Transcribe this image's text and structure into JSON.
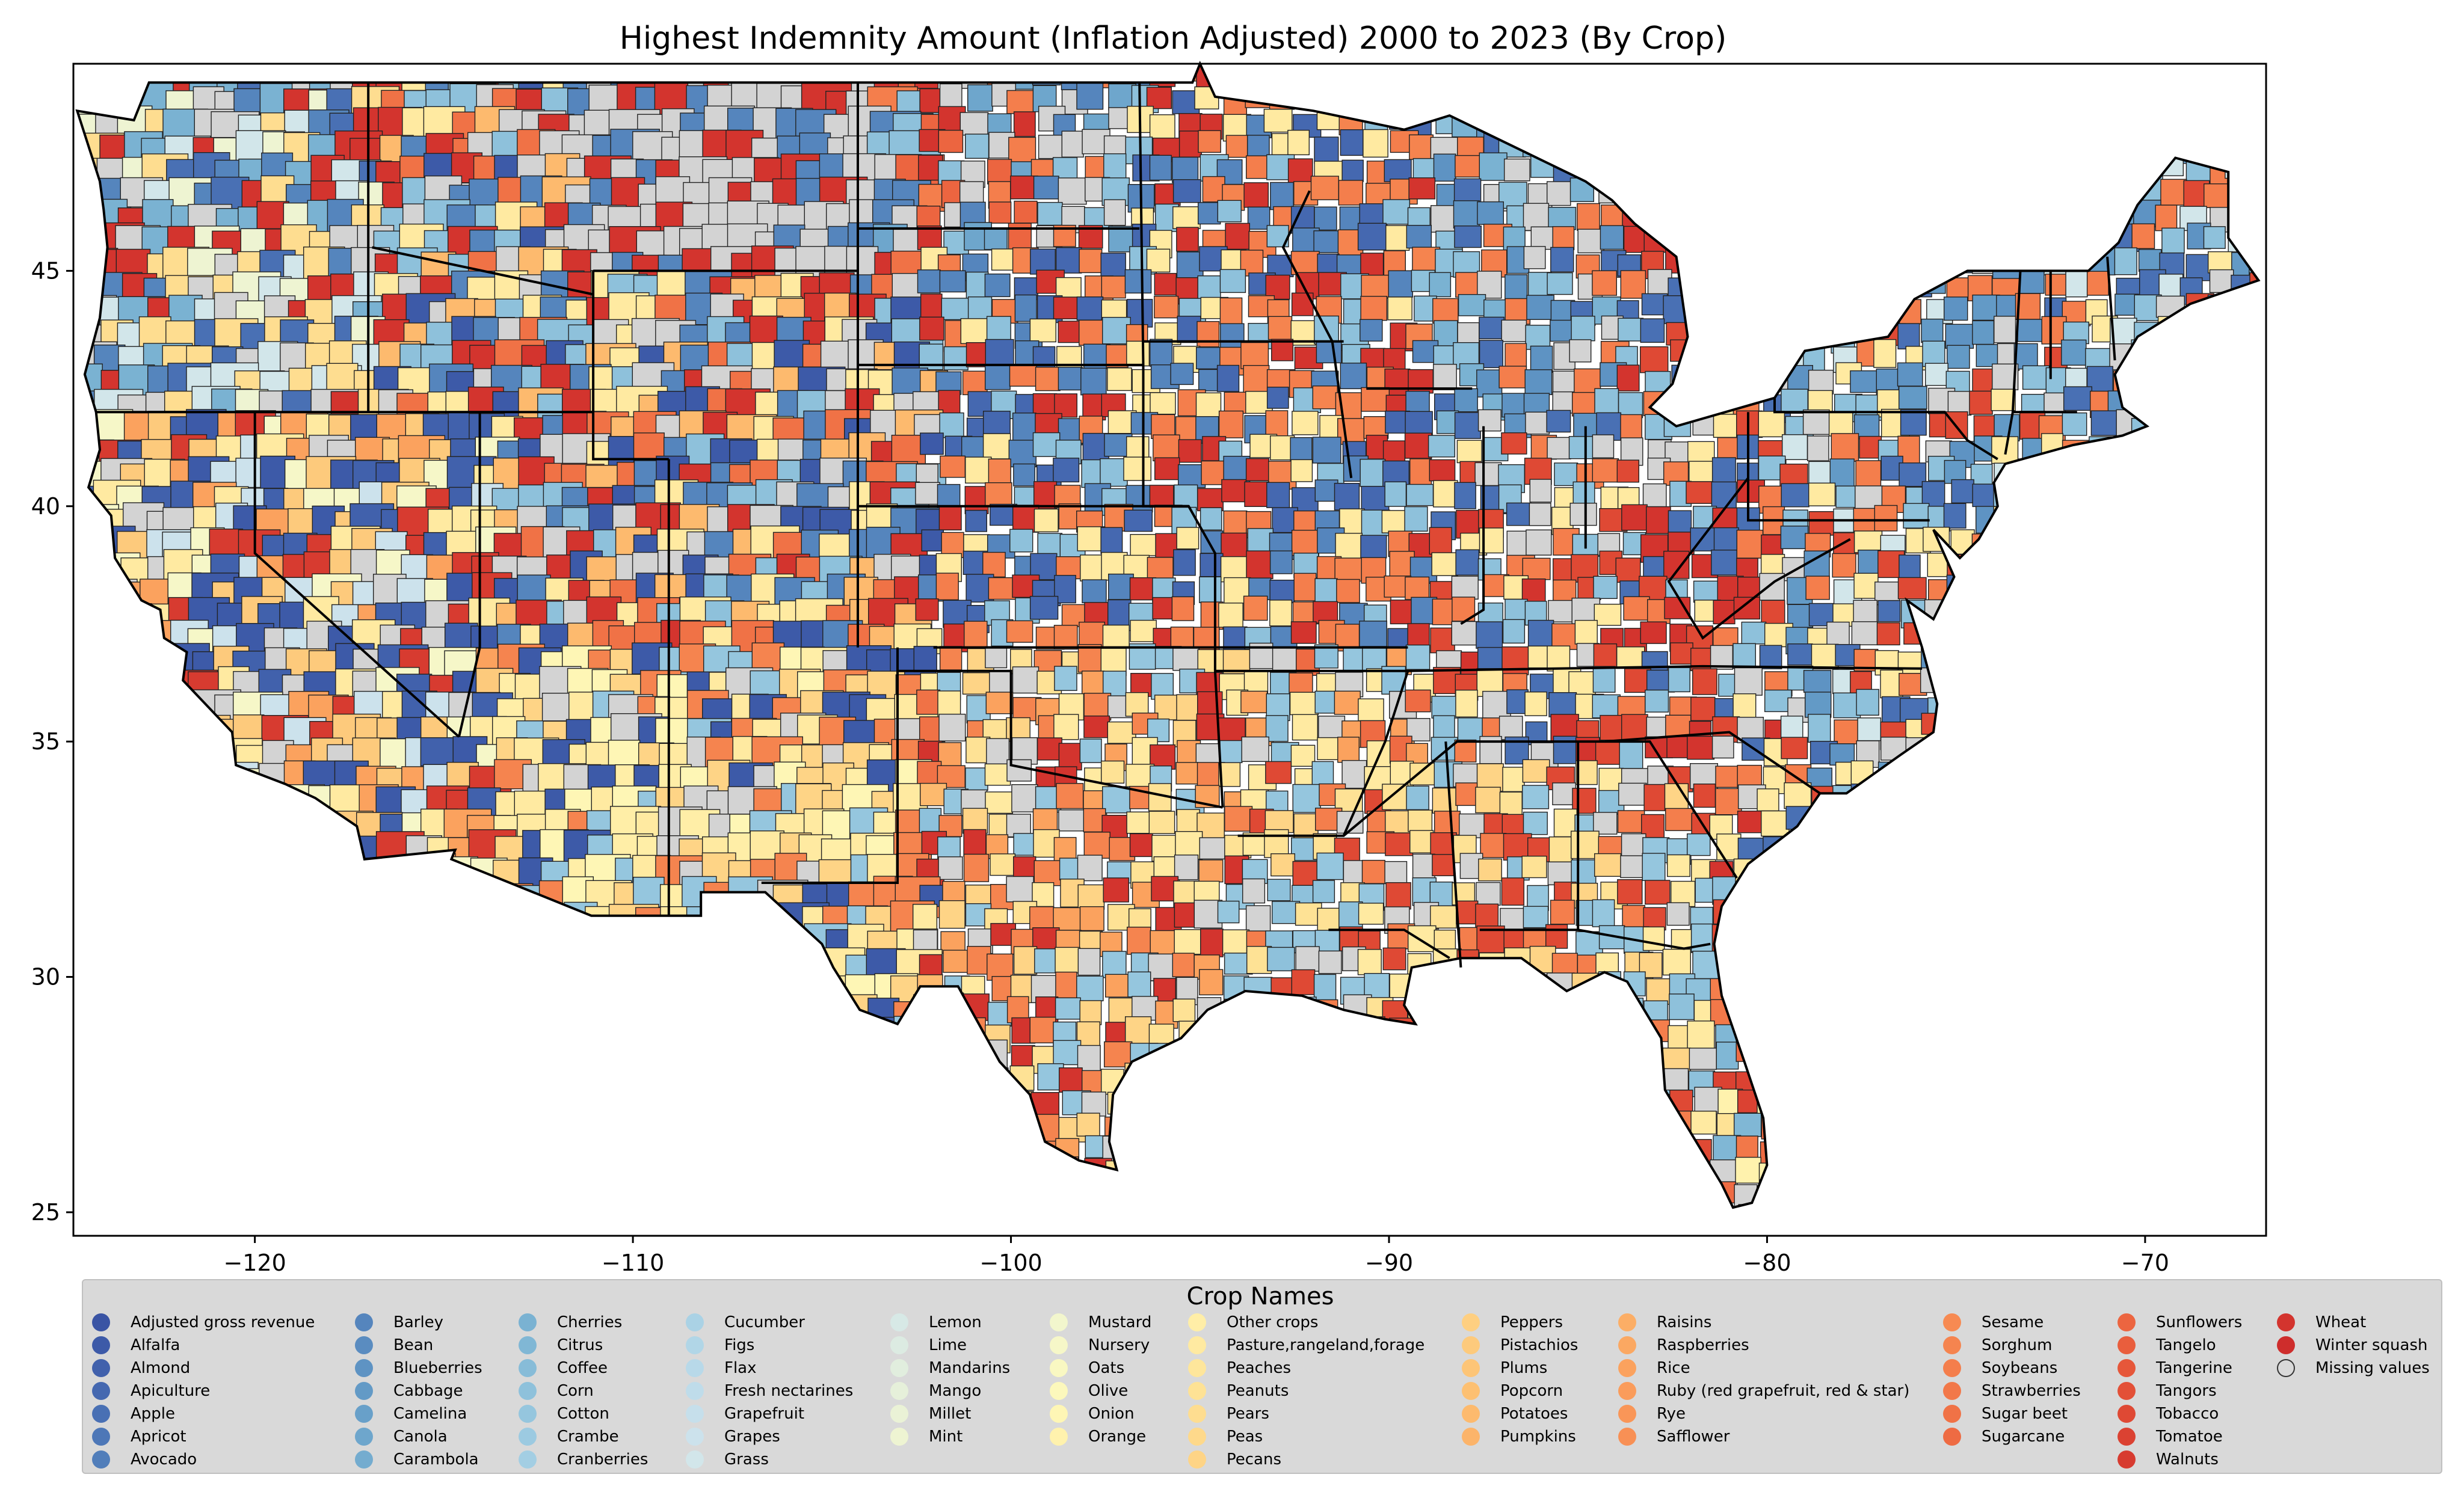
{
  "chart_data": {
    "type": "choropleth",
    "title": "Highest Indemnity Amount  (Inflation Adjusted) 2000 to 2023 (By Crop)",
    "x_ticks": [
      "−120",
      "−110",
      "−100",
      "−90",
      "−80",
      "−70"
    ],
    "y_ticks": [
      "45",
      "40",
      "35",
      "30",
      "25"
    ],
    "xlim": [
      -124.8,
      -66.8
    ],
    "ylim": [
      24.5,
      49.4
    ],
    "legend_title": "Crop Names",
    "legend_placement": "bottom",
    "categories": [
      {
        "name": "Adjusted gross revenue",
        "color": "#3a54a4"
      },
      {
        "name": "Alfalfa",
        "color": "#3d5aa8"
      },
      {
        "name": "Almond",
        "color": "#4161ac"
      },
      {
        "name": "Apiculture",
        "color": "#4568b0"
      },
      {
        "name": "Apple",
        "color": "#4970b4"
      },
      {
        "name": "Apricot",
        "color": "#4d77b7"
      },
      {
        "name": "Avocado",
        "color": "#517eba"
      },
      {
        "name": "Barley",
        "color": "#5585bd"
      },
      {
        "name": "Bean",
        "color": "#5a8cc0"
      },
      {
        "name": "Blueberries",
        "color": "#5e93c3"
      },
      {
        "name": "Cabbage",
        "color": "#639ac6"
      },
      {
        "name": "Camelina",
        "color": "#68a0c9"
      },
      {
        "name": "Canola",
        "color": "#6ea6cc"
      },
      {
        "name": "Carambola",
        "color": "#74accf"
      },
      {
        "name": "Cherries",
        "color": "#7ab2d2"
      },
      {
        "name": "Citrus",
        "color": "#80b7d5"
      },
      {
        "name": "Coffee",
        "color": "#87bcd8"
      },
      {
        "name": "Corn",
        "color": "#8ec1db"
      },
      {
        "name": "Cotton",
        "color": "#95c6de"
      },
      {
        "name": "Crambe",
        "color": "#9ccae1"
      },
      {
        "name": "Cranberries",
        "color": "#a3cee3"
      },
      {
        "name": "Cucumber",
        "color": "#aad2e5"
      },
      {
        "name": "Figs",
        "color": "#b1d6e7"
      },
      {
        "name": "Flax",
        "color": "#b8d9e9"
      },
      {
        "name": "Fresh nectarines",
        "color": "#bfdcea"
      },
      {
        "name": "Grapefruit",
        "color": "#c6dfeb"
      },
      {
        "name": "Grapes",
        "color": "#cce2ec"
      },
      {
        "name": "Grass",
        "color": "#d2e6ea"
      },
      {
        "name": "Lemon",
        "color": "#d7e9e6"
      },
      {
        "name": "Lime",
        "color": "#dcebe2"
      },
      {
        "name": "Mandarins",
        "color": "#e1eede"
      },
      {
        "name": "Mango",
        "color": "#e6f0da"
      },
      {
        "name": "Millet",
        "color": "#eaf2d6"
      },
      {
        "name": "Mint",
        "color": "#eef4d2"
      },
      {
        "name": "Mustard",
        "color": "#f2f6cd"
      },
      {
        "name": "Nursery",
        "color": "#f6f7c8"
      },
      {
        "name": "Oats",
        "color": "#f9f8c2"
      },
      {
        "name": "Olive",
        "color": "#fcf8bc"
      },
      {
        "name": "Onion",
        "color": "#fef6b5"
      },
      {
        "name": "Orange",
        "color": "#fff2ad"
      },
      {
        "name": "Other crops",
        "color": "#ffeea7"
      },
      {
        "name": "Pasture,rangeland,forage",
        "color": "#ffeaa1"
      },
      {
        "name": "Peaches",
        "color": "#fee69b"
      },
      {
        "name": "Peanuts",
        "color": "#fee295"
      },
      {
        "name": "Pears",
        "color": "#fedd90"
      },
      {
        "name": "Peas",
        "color": "#fed98b"
      },
      {
        "name": "Pecans",
        "color": "#fed486"
      },
      {
        "name": "Peppers",
        "color": "#fecf81"
      },
      {
        "name": "Pistachios",
        "color": "#fdca7c"
      },
      {
        "name": "Plums",
        "color": "#fdc577"
      },
      {
        "name": "Popcorn",
        "color": "#fdc072"
      },
      {
        "name": "Potatoes",
        "color": "#fdba6e"
      },
      {
        "name": "Pumpkins",
        "color": "#fcb46a"
      },
      {
        "name": "Raisins",
        "color": "#fcae66"
      },
      {
        "name": "Raspberries",
        "color": "#fba862"
      },
      {
        "name": "Rice",
        "color": "#fba25e"
      },
      {
        "name": "Ruby (red grapefruit, red & star)",
        "color": "#fa9c5b"
      },
      {
        "name": "Rye",
        "color": "#f99658"
      },
      {
        "name": "Safflower",
        "color": "#f89055"
      },
      {
        "name": "Sesame",
        "color": "#f78a52"
      },
      {
        "name": "Sorghum",
        "color": "#f5844f"
      },
      {
        "name": "Soybeans",
        "color": "#f47e4c"
      },
      {
        "name": "Strawberries",
        "color": "#f27849"
      },
      {
        "name": "Sugar beet",
        "color": "#f07246"
      },
      {
        "name": "Sugarcane",
        "color": "#ee6b43"
      },
      {
        "name": "Sunflowers",
        "color": "#ec6540"
      },
      {
        "name": "Tangelo",
        "color": "#e95e3d"
      },
      {
        "name": "Tangerine",
        "color": "#e6573a"
      },
      {
        "name": "Tangors",
        "color": "#e35037"
      },
      {
        "name": "Tobacco",
        "color": "#df4934"
      },
      {
        "name": "Tomatoe",
        "color": "#db4232"
      },
      {
        "name": "Walnuts",
        "color": "#d73b30"
      },
      {
        "name": "Wheat",
        "color": "#d3342e"
      },
      {
        "name": "Winter squash",
        "color": "#ce2d2c"
      },
      {
        "name": "Missing values",
        "color": "#d3d3d3"
      }
    ]
  }
}
